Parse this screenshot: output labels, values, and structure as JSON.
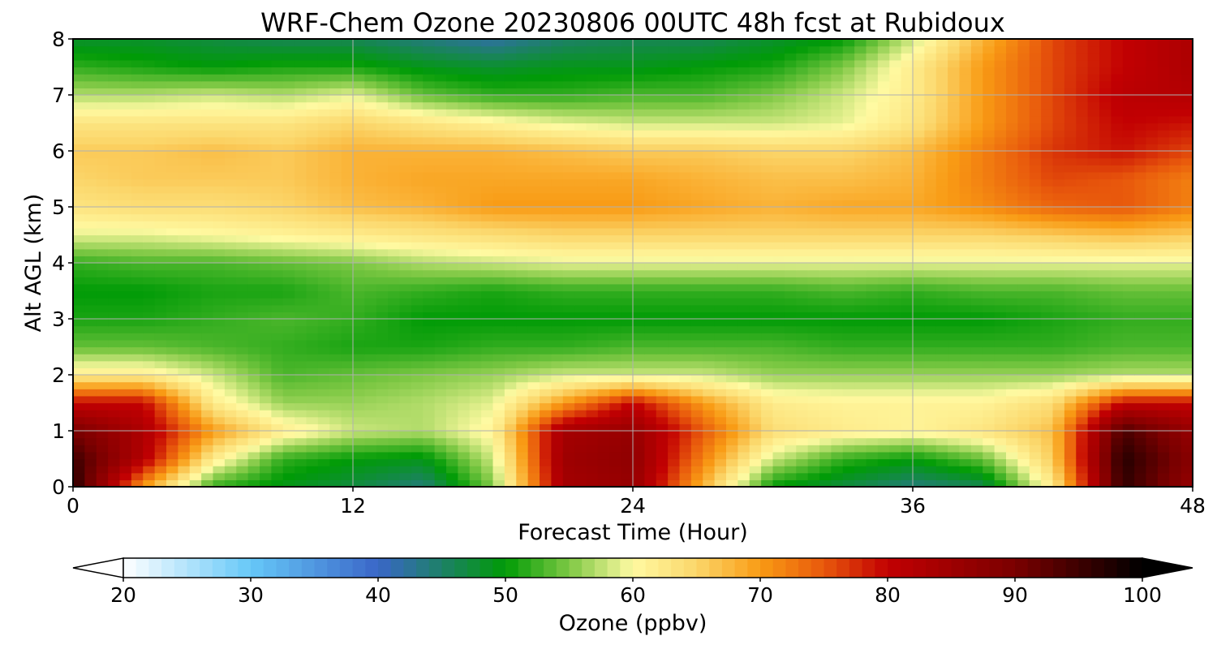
{
  "chart_data": {
    "type": "heatmap",
    "title": "WRF-Chem Ozone  20230806 00UTC 48h fcst at Rubidoux",
    "xlabel": "Forecast Time (Hour)",
    "ylabel": "Alt AGL (km)",
    "xlim": [
      0,
      48
    ],
    "ylim": [
      0,
      8
    ],
    "x_ticks": [
      0,
      12,
      24,
      36,
      48
    ],
    "y_ticks": [
      0,
      1,
      2,
      3,
      4,
      5,
      6,
      7,
      8
    ],
    "grid": true,
    "colorbar": {
      "label": "Ozone  (ppbv)",
      "min": 20,
      "max": 100,
      "ticks": [
        20,
        30,
        40,
        50,
        60,
        70,
        80,
        90,
        100
      ],
      "extend": "both",
      "stops": [
        {
          "v": 20,
          "c": "#ffffff"
        },
        {
          "v": 30,
          "c": "#66c8f8"
        },
        {
          "v": 40,
          "c": "#3a66c8"
        },
        {
          "v": 50,
          "c": "#009b06"
        },
        {
          "v": 55,
          "c": "#7ec844"
        },
        {
          "v": 60,
          "c": "#fffaa2"
        },
        {
          "v": 65,
          "c": "#fbd66a"
        },
        {
          "v": 70,
          "c": "#f99b14"
        },
        {
          "v": 75,
          "c": "#e8580c"
        },
        {
          "v": 80,
          "c": "#c20002"
        },
        {
          "v": 90,
          "c": "#7a0000"
        },
        {
          "v": 100,
          "c": "#000000"
        }
      ]
    },
    "x": [
      0,
      3,
      6,
      9,
      12,
      15,
      18,
      21,
      24,
      27,
      30,
      33,
      36,
      39,
      42,
      45,
      48
    ],
    "y": [
      0,
      0.5,
      1,
      1.5,
      2,
      2.5,
      3,
      3.5,
      4,
      4.5,
      5,
      5.5,
      6,
      6.5,
      7,
      7.5,
      8
    ],
    "z": [
      [
        97,
        70,
        52,
        49,
        47,
        44,
        55,
        84,
        86,
        68,
        50,
        47,
        44,
        46,
        62,
        96,
        86
      ],
      [
        95,
        82,
        62,
        52,
        50,
        49,
        58,
        85,
        87,
        72,
        58,
        52,
        50,
        54,
        66,
        97,
        88
      ],
      [
        90,
        83,
        70,
        62,
        58,
        57,
        61,
        84,
        86,
        75,
        64,
        62,
        61,
        63,
        67,
        94,
        86
      ],
      [
        80,
        80,
        62,
        56,
        56,
        57,
        59,
        70,
        80,
        70,
        62,
        61,
        61,
        61,
        64,
        80,
        80
      ],
      [
        62,
        62,
        58,
        53,
        54,
        55,
        56,
        58,
        58,
        58,
        56,
        56,
        56,
        56,
        56,
        57,
        57
      ],
      [
        54,
        54,
        53,
        52,
        51,
        51,
        52,
        52,
        53,
        53,
        53,
        52,
        52,
        52,
        52,
        53,
        53
      ],
      [
        51,
        51,
        52,
        53,
        52,
        50,
        50,
        50,
        50,
        50,
        50,
        50,
        50,
        50,
        51,
        52,
        52
      ],
      [
        50,
        50,
        51,
        51,
        53,
        52,
        51,
        52,
        52,
        52,
        52,
        53,
        52,
        53,
        53,
        54,
        54
      ],
      [
        52,
        53,
        53,
        54,
        55,
        57,
        58,
        59,
        59,
        59,
        59,
        59,
        59,
        59,
        59,
        59,
        59
      ],
      [
        59,
        59,
        60,
        61,
        62,
        63,
        64,
        65,
        65,
        65,
        65,
        65,
        65,
        65,
        66,
        67,
        66
      ],
      [
        63,
        64,
        64,
        65,
        67,
        68,
        70,
        70,
        70,
        69,
        68,
        69,
        69,
        71,
        74,
        75,
        72
      ],
      [
        65,
        66,
        66,
        66,
        68,
        69,
        69,
        69,
        69,
        68,
        67,
        67,
        68,
        72,
        76,
        75,
        72
      ],
      [
        66,
        66,
        67,
        66,
        68,
        68,
        68,
        67,
        66,
        66,
        65,
        65,
        67,
        72,
        77,
        79,
        76
      ],
      [
        63,
        63,
        63,
        63,
        65,
        63,
        61,
        59,
        58,
        58,
        58,
        59,
        63,
        70,
        76,
        80,
        79
      ],
      [
        57,
        57,
        58,
        57,
        59,
        54,
        52,
        52,
        53,
        53,
        55,
        58,
        62,
        70,
        76,
        81,
        82
      ],
      [
        52,
        51,
        50,
        51,
        51,
        49,
        48,
        49,
        49,
        50,
        51,
        55,
        62,
        70,
        76,
        80,
        83
      ],
      [
        48,
        48,
        47,
        46,
        46,
        44,
        42,
        45,
        46,
        46,
        48,
        50,
        58,
        68,
        76,
        80,
        83
      ]
    ]
  }
}
